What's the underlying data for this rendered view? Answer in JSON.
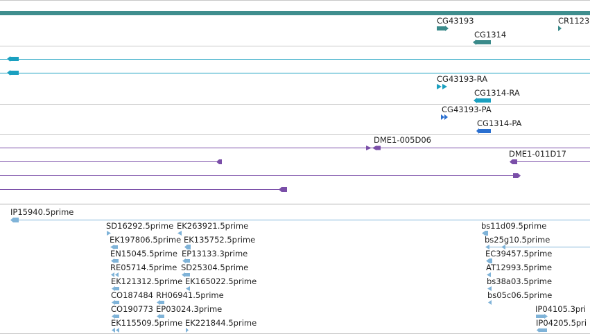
{
  "colors": {
    "ruler": "#3f8e8e",
    "gene": "#3a8a8a",
    "transcript_rna": "#1aa0c0",
    "protein": "#2a6fd0",
    "clone": "#7a4ea8",
    "est": "#7fb3d8",
    "separator": "#c8c8c8"
  },
  "gene_track": {
    "labels": [
      "CG43193",
      "CG1314",
      "CR1123"
    ]
  },
  "transcript_track": {
    "labels": [
      "CG43193-RA",
      "CG1314-RA"
    ]
  },
  "protein_track": {
    "labels": [
      "CG43193-PA",
      "CG1314-PA"
    ]
  },
  "clone_track": {
    "labels": [
      "DME1-005D06",
      "DME1-011D17"
    ]
  },
  "est_track": {
    "labels": [
      "IP15940.5prime",
      "SD16292.5prime",
      "EK263921.5prime",
      "EK197806.5prime",
      "EK135752.5prime",
      "EN15045.5prime",
      "EP13133.3prime",
      "RE05714.5prime",
      "SD25304.5prime",
      "EK121312.5prime",
      "EK165022.5prime",
      "CO187484",
      "RH06941.5prime",
      "CO190773",
      "EP03024.3prime",
      "EK115509.5prime",
      "EK221844.5prime",
      "bs11d09.5prime",
      "bs25g10.5prime",
      "EC39457.5prime",
      "AT12993.5prime",
      "bs38a03.5prime",
      "bs05c06.5prime",
      "IP04105.3pri",
      "IP04205.5pri"
    ]
  }
}
